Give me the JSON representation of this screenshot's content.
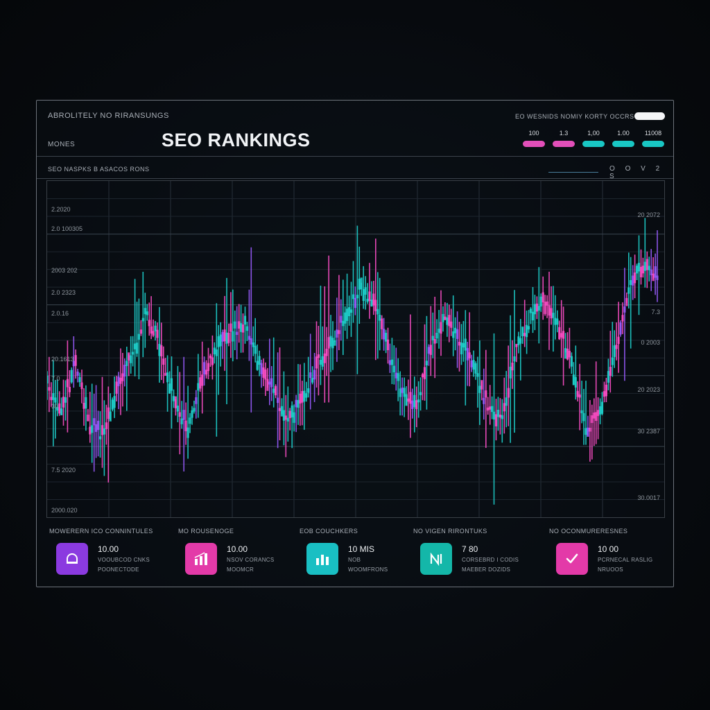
{
  "header": {
    "small_title": "ABROLITELY NO RIRANSUNGS",
    "months_label": "MONES",
    "title": "SEO RANKINGS",
    "top_right_label": "EO WESNIDS NOMIY KORTY OCCRS"
  },
  "legend": [
    {
      "value": "100",
      "color": "#e24fb9"
    },
    {
      "value": "1.3",
      "color": "#e24fb9"
    },
    {
      "value": "1,00",
      "color": "#19c7c4"
    },
    {
      "value": "1.00",
      "color": "#19c7c4"
    },
    {
      "value": "11008",
      "color": "#19c7c4"
    }
  ],
  "subheader": {
    "label": "SEO NASPKS B ASACOS RONS",
    "controls": [
      "O",
      "O",
      "V",
      "2",
      "S"
    ]
  },
  "chart_data": {
    "type": "bar",
    "left_axis_labels": [
      "2.2020",
      "2.0 100305",
      "2003 202",
      "2.0 2323",
      "2.0.16",
      "20.1613",
      "7.0",
      "30",
      "7.5 2020",
      "2000.020"
    ],
    "right_axis_labels": [
      "20 2072",
      "7.3",
      "0 2003",
      "20 2023",
      "30 2387",
      "30.0017"
    ],
    "series_colors": [
      "#1fd3cf",
      "#ff4fc8",
      "#9a5cff"
    ],
    "trend": [
      0.38,
      0.3,
      0.45,
      0.25,
      0.22,
      0.38,
      0.48,
      0.62,
      0.5,
      0.32,
      0.24,
      0.42,
      0.5,
      0.56,
      0.58,
      0.44,
      0.36,
      0.26,
      0.33,
      0.45,
      0.52,
      0.6,
      0.7,
      0.66,
      0.5,
      0.36,
      0.3,
      0.5,
      0.62,
      0.54,
      0.45,
      0.32,
      0.26,
      0.48,
      0.6,
      0.66,
      0.58,
      0.44,
      0.24,
      0.3,
      0.48,
      0.7,
      0.78,
      0.74
    ]
  },
  "stats": [
    {
      "title": "MOWERERN ICO CONNINTULES",
      "value": "10.00",
      "line1": "VOOUBCOD CNKS",
      "line2": "POONECTODE",
      "color": "#8b3ae0",
      "icon": "helmet-icon"
    },
    {
      "title": "MO ROUSENOGE",
      "value": "10.00",
      "line1": "NSOV CORANCS",
      "line2": "MOOMCR",
      "color": "#e33aa8",
      "icon": "bar-chart-icon"
    },
    {
      "title": "EOB COUCHKERS",
      "value": "10 MIS",
      "line1": "NOB",
      "line2": "WOOMFRONS",
      "color": "#19bfc3",
      "icon": "bar-chart-icon"
    },
    {
      "title": "NO VIGEN RIRONTUKS",
      "value": "7 80",
      "line1": "CORSEBRD I CODIS",
      "line2": "MAEBER DOZIDS",
      "color": "#14b7a9",
      "icon": "n-logo-icon"
    },
    {
      "title": "NO OCONMURERESNES",
      "value": "10 00",
      "line1": "PCRNECAL RASLIG",
      "line2": "NRUOOS",
      "color": "#e33aa8",
      "icon": "check-icon"
    }
  ]
}
